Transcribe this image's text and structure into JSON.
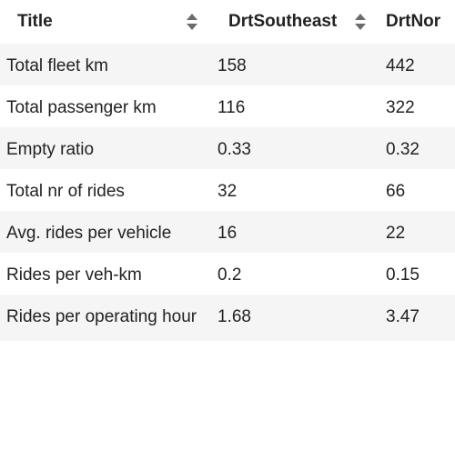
{
  "table": {
    "columns": [
      {
        "label": "Title",
        "sortable": true
      },
      {
        "label": "DrtSoutheast",
        "sortable": true
      },
      {
        "label": "DrtNor",
        "sortable": false
      }
    ],
    "rows": [
      [
        "Total fleet km",
        "158",
        "442"
      ],
      [
        "Total passenger km",
        "116",
        "322"
      ],
      [
        "Empty ratio",
        "0.33",
        "0.32"
      ],
      [
        "Total nr of rides",
        "32",
        "66"
      ],
      [
        "Avg. rides per vehicle",
        "16",
        "22"
      ],
      [
        "Rides per veh-km",
        "0.2",
        "0.15"
      ],
      [
        "Rides per operating hour",
        "1.68",
        "3.47"
      ]
    ]
  },
  "colors": {
    "stripe": "#f5f5f5",
    "text": "#222222",
    "sort_icon": "#6b6b6b"
  },
  "icons": {
    "sort": "sort-both-icon"
  }
}
